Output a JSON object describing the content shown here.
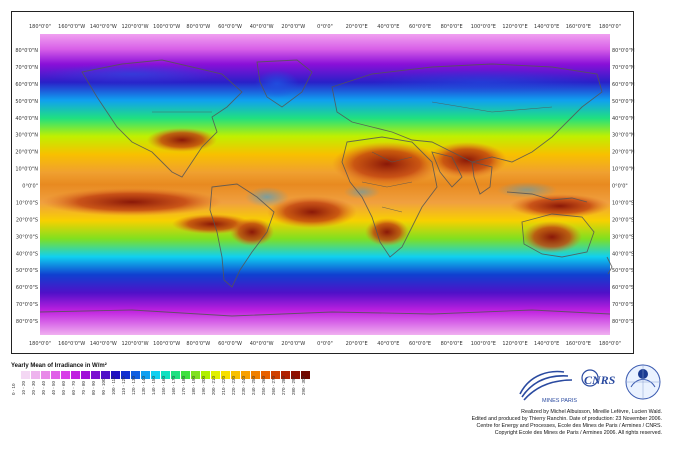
{
  "map": {
    "top_lon_labels": [
      "180°0'0\"",
      "160°0'0\"W",
      "140°0'0\"W",
      "120°0'0\"W",
      "100°0'0\"W",
      "80°0'0\"W",
      "60°0'0\"W",
      "40°0'0\"W",
      "20°0'0\"W",
      "0°0'0\"",
      "20°0'0\"E",
      "40°0'0\"E",
      "60°0'0\"E",
      "80°0'0\"E",
      "100°0'0\"E",
      "120°0'0\"E",
      "140°0'0\"E",
      "160°0'0\"E",
      "180°0'0\""
    ],
    "bottom_lon_labels": [
      "180°0'0\"",
      "160°0'0\"W",
      "140°0'0\"W",
      "120°0'0\"W",
      "100°0'0\"W",
      "80°0'0\"W",
      "60°0'0\"W",
      "40°0'0\"W",
      "20°0'0\"W",
      "0°0'0\"",
      "20°0'0\"E",
      "40°0'0\"E",
      "60°0'0\"E",
      "80°0'0\"E",
      "100°0'0\"E",
      "120°0'0\"E",
      "140°0'0\"E",
      "160°0'0\"E",
      "180°0'0\""
    ],
    "lat_labels_left": [
      "80°0'0\"N",
      "70°0'0\"N",
      "60°0'0\"N",
      "50°0'0\"N",
      "40°0'0\"N",
      "30°0'0\"N",
      "20°0'0\"N",
      "10°0'0\"N",
      "0°0'0\"",
      "10°0'0\"S",
      "20°0'0\"S",
      "30°0'0\"S",
      "40°0'0\"S",
      "50°0'0\"S",
      "60°0'0\"S",
      "70°0'0\"S",
      "80°0'0\"S"
    ],
    "lat_labels_right": [
      "80°0'0\"N",
      "70°0'0\"N",
      "60°0'0\"N",
      "50°0'0\"N",
      "40°0'0\"N",
      "30°0'0\"N",
      "20°0'0\"N",
      "10°0'0\"N",
      "0°0'0\"",
      "10°0'0\"S",
      "20°0'0\"S",
      "30°0'0\"S",
      "40°0'0\"S",
      "50°0'0\"S",
      "60°0'0\"S",
      "70°0'0\"S",
      "80°0'0\"S"
    ]
  },
  "legend": {
    "title": "Yearly Mean of Irradiance in W/m²",
    "bins": [
      "0 - 10",
      "10 - 20",
      "20 - 30",
      "30 - 40",
      "40 - 50",
      "50 - 60",
      "60 - 70",
      "70 - 80",
      "80 - 90",
      "90 - 100",
      "100 - 110",
      "110 - 120",
      "120 - 130",
      "130 - 140",
      "140 - 150",
      "150 - 160",
      "160 - 170",
      "170 - 180",
      "180 - 190",
      "190 - 200",
      "200 - 210",
      "210 - 220",
      "220 - 230",
      "230 - 240",
      "240 - 250",
      "250 - 260",
      "260 - 270",
      "270 - 280",
      "280 - 290",
      "290 - 300"
    ],
    "colors": [
      "#ffffff",
      "#f4d8f4",
      "#eeb4ee",
      "#e88ae8",
      "#e060e8",
      "#d840e8",
      "#c020e0",
      "#a010d8",
      "#7a10d0",
      "#5010c8",
      "#2010c0",
      "#1030d0",
      "#1060e0",
      "#10a0f0",
      "#10d0f0",
      "#10e0c0",
      "#20e080",
      "#40e040",
      "#80e020",
      "#b0f000",
      "#e0f000",
      "#f8e000",
      "#f8c000",
      "#f8a000",
      "#f08000",
      "#e86000",
      "#d04000",
      "#b02000",
      "#901000",
      "#700800"
    ]
  },
  "credits": {
    "line1": "Realized by Michel Albuisson, Mireille Lefèvre, Lucien Wald.",
    "line2": "Edited and produced by Thierry Ranchin. Date of production: 23 November 2006.",
    "line3": "Centre for Energy and Processes, Ecole des Mines de Paris / Armines / CNRS.",
    "line4": "Copyright Ecole des Mines de Paris / Armines 2006. All rights reserved."
  },
  "logos": {
    "mines": "MINES PARIS",
    "cnrs": "CNRS"
  }
}
